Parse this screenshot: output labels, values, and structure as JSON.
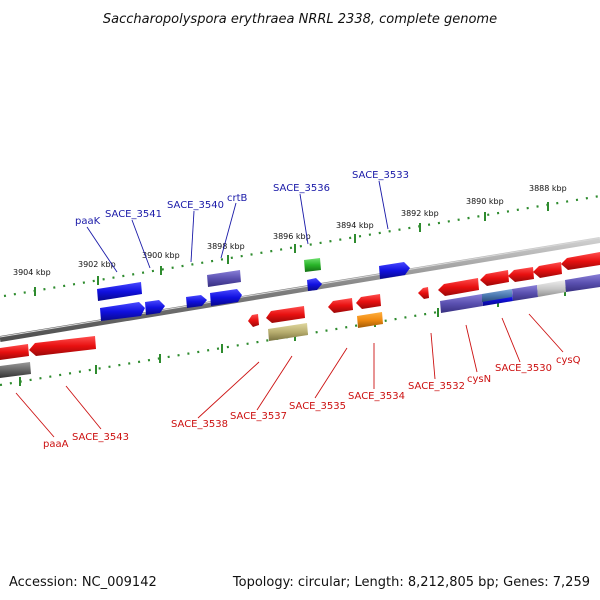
{
  "title": "Saccharopolyspora erythraea NRRL 2338, complete genome",
  "footer": {
    "accession": "Accession: NC_009142",
    "summary": "Topology: circular; Length: 8,212,805 bp; Genes: 7,259"
  },
  "colors": {
    "forward_gene": "#1010e0",
    "reverse_gene": "#e81010",
    "backbone": "#808080",
    "ticks": "#2e8b2e",
    "forward_label": "#1a1aa8",
    "reverse_label": "#cc1111"
  },
  "scale_labels": [
    "3904 kbp",
    "3902 kbp",
    "3900 kbp",
    "3898 kbp",
    "3896 kbp",
    "3894 kbp",
    "3892 kbp",
    "3890 kbp",
    "3888 kbp"
  ],
  "forward_labels": [
    "paaK",
    "SACE_3541",
    "SACE_3540",
    "crtB",
    "SACE_3536",
    "SACE_3533"
  ],
  "reverse_labels": [
    "paaA",
    "SACE_3543",
    "SACE_3538",
    "SACE_3537",
    "SACE_3535",
    "SACE_3534",
    "SACE_3532",
    "cysN",
    "SACE_3530",
    "cysQ"
  ]
}
